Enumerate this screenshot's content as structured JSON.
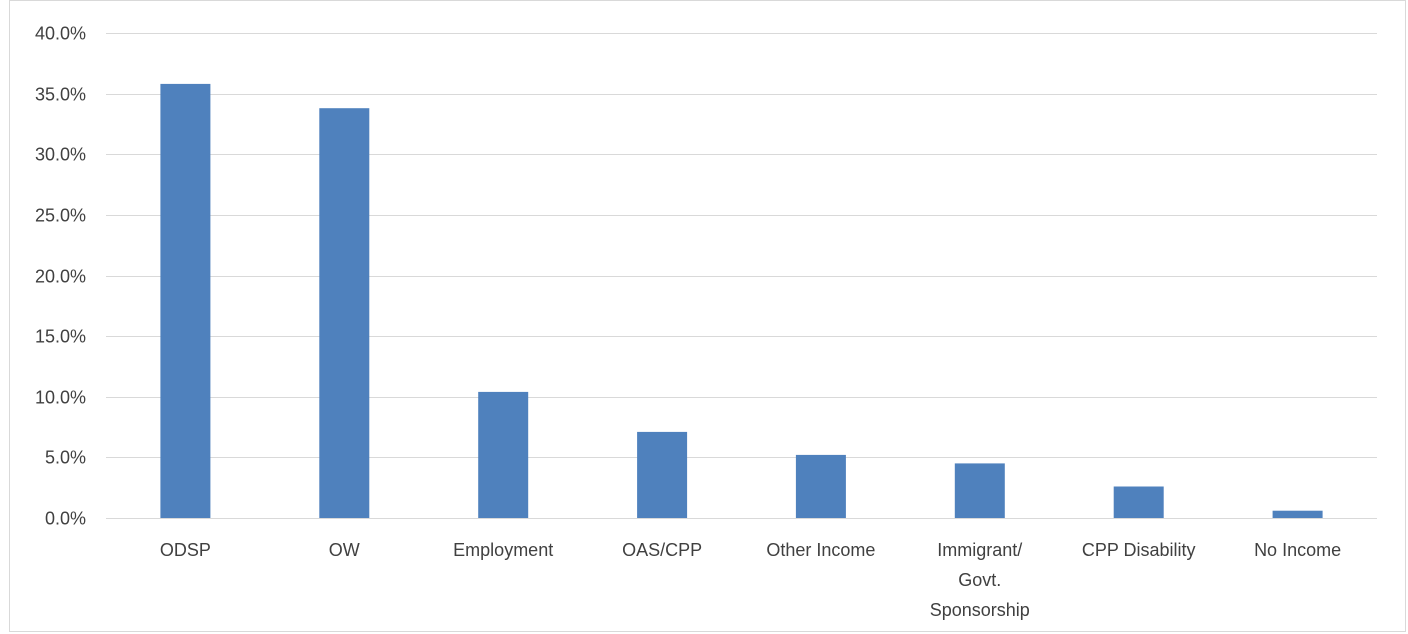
{
  "chart_data": {
    "type": "bar",
    "title": "",
    "xlabel": "",
    "ylabel": "",
    "categories": [
      [
        "ODSP"
      ],
      [
        "OW"
      ],
      [
        "Employment"
      ],
      [
        "OAS/CPP"
      ],
      [
        "Other Income"
      ],
      [
        "Immigrant/",
        "Govt.",
        "Sponsorship"
      ],
      [
        "CPP Disability"
      ],
      [
        "No Income"
      ]
    ],
    "values": [
      35.8,
      33.8,
      10.4,
      7.1,
      5.2,
      4.5,
      2.6,
      0.6
    ],
    "value_format": "percent-1dp",
    "ylim": [
      0,
      40
    ],
    "yticks": [
      "0.0%",
      "5.0%",
      "10.0%",
      "15.0%",
      "20.0%",
      "25.0%",
      "30.0%",
      "35.0%",
      "40.0%"
    ],
    "grid": true,
    "legend": "none",
    "colors": {
      "bar": "#4f81bd",
      "grid": "#d9d9d9",
      "text": "#404040"
    }
  }
}
